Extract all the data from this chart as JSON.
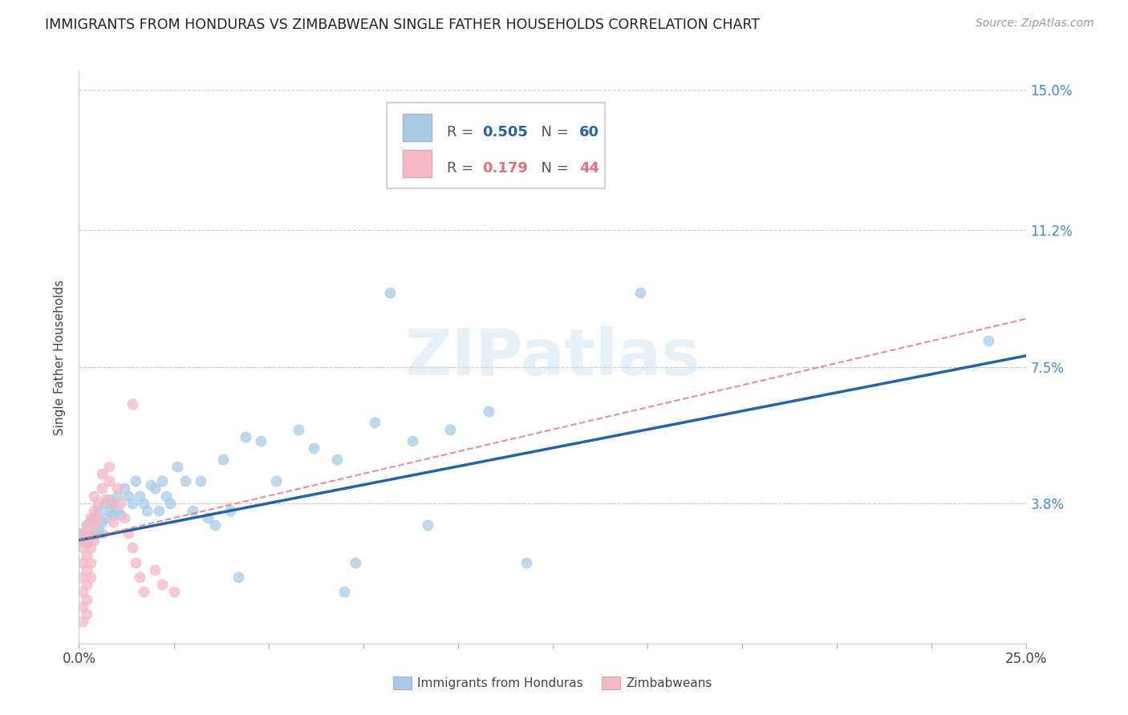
{
  "title": "IMMIGRANTS FROM HONDURAS VS ZIMBABWEAN SINGLE FATHER HOUSEHOLDS CORRELATION CHART",
  "source": "Source: ZipAtlas.com",
  "ylabel": "Single Father Households",
  "xlim": [
    0.0,
    0.25
  ],
  "ylim": [
    0.0,
    0.155
  ],
  "yticks": [
    0.0,
    0.038,
    0.075,
    0.112,
    0.15
  ],
  "ytick_labels": [
    "",
    "3.8%",
    "7.5%",
    "11.2%",
    "15.0%"
  ],
  "xticks": [
    0.0,
    0.025,
    0.05,
    0.075,
    0.1,
    0.125,
    0.15,
    0.175,
    0.2,
    0.225,
    0.25
  ],
  "xtick_labels": [
    "0.0%",
    "",
    "",
    "",
    "",
    "",
    "",
    "",
    "",
    "",
    "25.0%"
  ],
  "legend_R1": "0.505",
  "legend_N1": "60",
  "legend_R2": "0.179",
  "legend_N2": "44",
  "color_blue": "#a8cce8",
  "color_pink": "#f5b8c4",
  "line_blue": "#2563a8",
  "line_pink": "#e8707a",
  "watermark": "ZIPatlas",
  "scatter_blue": [
    [
      0.001,
      0.03
    ],
    [
      0.001,
      0.028
    ],
    [
      0.002,
      0.032
    ],
    [
      0.002,
      0.027
    ],
    [
      0.003,
      0.03
    ],
    [
      0.003,
      0.033
    ],
    [
      0.004,
      0.029
    ],
    [
      0.004,
      0.034
    ],
    [
      0.005,
      0.031
    ],
    [
      0.005,
      0.036
    ],
    [
      0.006,
      0.033
    ],
    [
      0.006,
      0.03
    ],
    [
      0.007,
      0.038
    ],
    [
      0.007,
      0.034
    ],
    [
      0.008,
      0.036
    ],
    [
      0.008,
      0.039
    ],
    [
      0.009,
      0.038
    ],
    [
      0.009,
      0.035
    ],
    [
      0.01,
      0.04
    ],
    [
      0.01,
      0.036
    ],
    [
      0.011,
      0.035
    ],
    [
      0.012,
      0.042
    ],
    [
      0.013,
      0.04
    ],
    [
      0.014,
      0.038
    ],
    [
      0.015,
      0.044
    ],
    [
      0.016,
      0.04
    ],
    [
      0.017,
      0.038
    ],
    [
      0.018,
      0.036
    ],
    [
      0.019,
      0.043
    ],
    [
      0.02,
      0.042
    ],
    [
      0.021,
      0.036
    ],
    [
      0.022,
      0.044
    ],
    [
      0.023,
      0.04
    ],
    [
      0.024,
      0.038
    ],
    [
      0.026,
      0.048
    ],
    [
      0.028,
      0.044
    ],
    [
      0.03,
      0.036
    ],
    [
      0.032,
      0.044
    ],
    [
      0.034,
      0.034
    ],
    [
      0.036,
      0.032
    ],
    [
      0.038,
      0.05
    ],
    [
      0.04,
      0.036
    ],
    [
      0.042,
      0.018
    ],
    [
      0.044,
      0.056
    ],
    [
      0.048,
      0.055
    ],
    [
      0.052,
      0.044
    ],
    [
      0.058,
      0.058
    ],
    [
      0.062,
      0.053
    ],
    [
      0.068,
      0.05
    ],
    [
      0.07,
      0.014
    ],
    [
      0.073,
      0.022
    ],
    [
      0.078,
      0.06
    ],
    [
      0.082,
      0.095
    ],
    [
      0.088,
      0.055
    ],
    [
      0.092,
      0.032
    ],
    [
      0.098,
      0.058
    ],
    [
      0.108,
      0.063
    ],
    [
      0.118,
      0.022
    ],
    [
      0.148,
      0.095
    ],
    [
      0.24,
      0.082
    ]
  ],
  "scatter_pink": [
    [
      0.001,
      0.03
    ],
    [
      0.001,
      0.026
    ],
    [
      0.001,
      0.022
    ],
    [
      0.001,
      0.018
    ],
    [
      0.001,
      0.014
    ],
    [
      0.001,
      0.01
    ],
    [
      0.001,
      0.006
    ],
    [
      0.002,
      0.032
    ],
    [
      0.002,
      0.028
    ],
    [
      0.002,
      0.024
    ],
    [
      0.002,
      0.02
    ],
    [
      0.002,
      0.016
    ],
    [
      0.002,
      0.012
    ],
    [
      0.002,
      0.008
    ],
    [
      0.003,
      0.034
    ],
    [
      0.003,
      0.03
    ],
    [
      0.003,
      0.026
    ],
    [
      0.003,
      0.022
    ],
    [
      0.003,
      0.018
    ],
    [
      0.004,
      0.04
    ],
    [
      0.004,
      0.036
    ],
    [
      0.004,
      0.032
    ],
    [
      0.004,
      0.028
    ],
    [
      0.005,
      0.038
    ],
    [
      0.005,
      0.034
    ],
    [
      0.006,
      0.046
    ],
    [
      0.006,
      0.042
    ],
    [
      0.007,
      0.039
    ],
    [
      0.008,
      0.048
    ],
    [
      0.008,
      0.044
    ],
    [
      0.009,
      0.038
    ],
    [
      0.009,
      0.033
    ],
    [
      0.01,
      0.042
    ],
    [
      0.011,
      0.038
    ],
    [
      0.012,
      0.034
    ],
    [
      0.013,
      0.03
    ],
    [
      0.014,
      0.026
    ],
    [
      0.015,
      0.022
    ],
    [
      0.016,
      0.018
    ],
    [
      0.017,
      0.014
    ],
    [
      0.02,
      0.02
    ],
    [
      0.022,
      0.016
    ],
    [
      0.014,
      0.065
    ],
    [
      0.025,
      0.014
    ]
  ],
  "blue_line_x": [
    0.0,
    0.25
  ],
  "blue_line_y": [
    0.028,
    0.078
  ],
  "pink_line_x": [
    0.0,
    0.25
  ],
  "pink_line_y": [
    0.028,
    0.088
  ]
}
